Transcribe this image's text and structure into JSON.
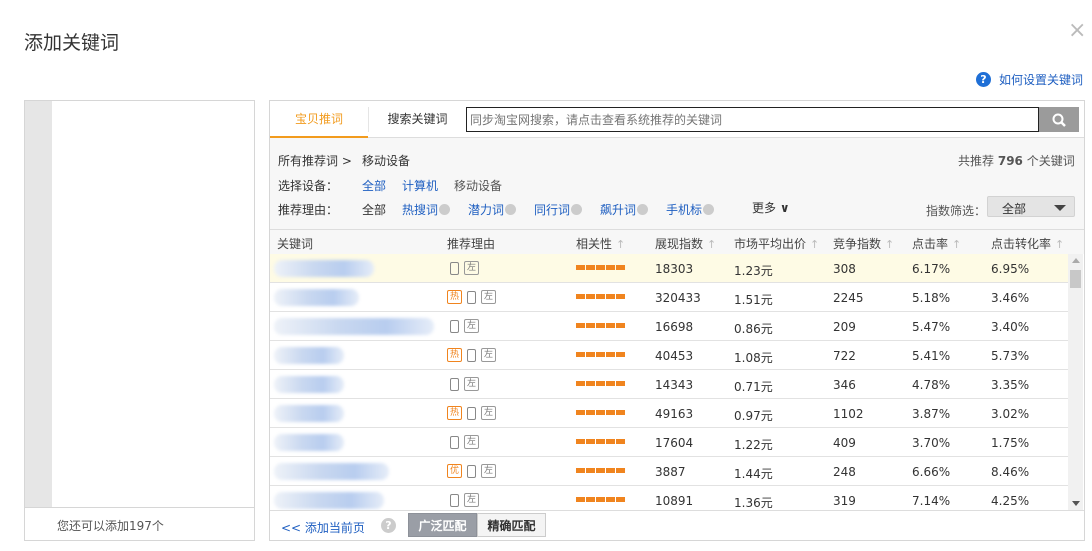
{
  "dialog": {
    "title": "添加关键词",
    "close": "×",
    "help_link": "如何设置关键词",
    "help_icon": "?"
  },
  "left_panel": {
    "remaining": "您还可以添加197个"
  },
  "tabs": [
    {
      "label": "宝贝推词",
      "active": true
    },
    {
      "label": "搜索关键词",
      "active": false
    }
  ],
  "search": {
    "placeholder": "同步淘宝网搜索，请点击查看系统推荐的关键词",
    "icon": "search-icon"
  },
  "breadcrumb": {
    "root": "所有推荐词 >",
    "current": "移动设备"
  },
  "total": {
    "prefix": "共推荐",
    "count": "796",
    "suffix": "个关键词"
  },
  "device": {
    "label": "选择设备：",
    "options": [
      "全部",
      "计算机",
      "移动设备"
    ],
    "selected": "移动设备"
  },
  "reason": {
    "label": "推荐理由：",
    "options": [
      "全部",
      "热搜词",
      "潜力词",
      "同行词",
      "飙升词",
      "手机标"
    ],
    "more": "更多"
  },
  "index_filter": {
    "label": "指数筛选：",
    "value": "全部"
  },
  "columns": [
    "关键词",
    "推荐理由",
    "相关性",
    "展现指数",
    "市场平均出价",
    "竞争指数",
    "点击率",
    "点击转化率"
  ],
  "rows": [
    {
      "tags": [],
      "relevance": 5,
      "display": "18303",
      "price": "1.23元",
      "competition": "308",
      "ctr": "6.17%",
      "cvr": "6.95%",
      "highlight": true
    },
    {
      "tags": [
        "热"
      ],
      "relevance": 5,
      "display": "320433",
      "price": "1.51元",
      "competition": "2245",
      "ctr": "5.18%",
      "cvr": "3.46%"
    },
    {
      "tags": [],
      "relevance": 5,
      "display": "16698",
      "price": "0.86元",
      "competition": "209",
      "ctr": "5.47%",
      "cvr": "3.40%"
    },
    {
      "tags": [
        "热"
      ],
      "relevance": 5,
      "display": "40453",
      "price": "1.08元",
      "competition": "722",
      "ctr": "5.41%",
      "cvr": "5.73%"
    },
    {
      "tags": [],
      "relevance": 5,
      "display": "14343",
      "price": "0.71元",
      "competition": "346",
      "ctr": "4.78%",
      "cvr": "3.35%"
    },
    {
      "tags": [
        "热"
      ],
      "relevance": 5,
      "display": "49163",
      "price": "0.97元",
      "competition": "1102",
      "ctr": "3.87%",
      "cvr": "3.02%"
    },
    {
      "tags": [],
      "relevance": 5,
      "display": "17604",
      "price": "1.22元",
      "competition": "409",
      "ctr": "3.70%",
      "cvr": "1.75%"
    },
    {
      "tags": [
        "优"
      ],
      "relevance": 5,
      "display": "3887",
      "price": "1.44元",
      "competition": "248",
      "ctr": "6.66%",
      "cvr": "8.46%"
    },
    {
      "tags": [],
      "relevance": 5,
      "display": "10891",
      "price": "1.36元",
      "competition": "319",
      "ctr": "7.14%",
      "cvr": "4.25%"
    }
  ],
  "device_tag": "左",
  "footer": {
    "add_page": "<<  添加当前页",
    "help": "?",
    "broad": "广泛匹配",
    "exact": "精确匹配"
  },
  "colors": {
    "accent": "#f29b1d",
    "link": "#1f5fc1",
    "relevance": "#f0841e"
  }
}
